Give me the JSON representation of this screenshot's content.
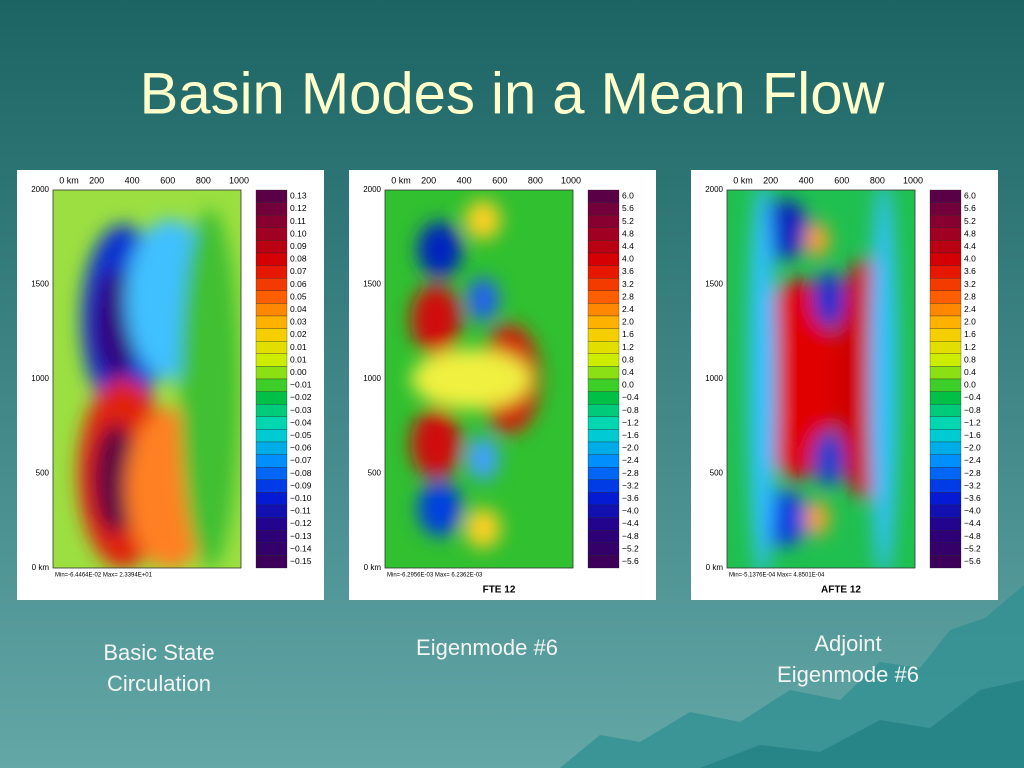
{
  "title": "Basin Modes in a Mean Flow",
  "panels": [
    {
      "x_ticks": [
        "0 km",
        "200",
        "400",
        "600",
        "800",
        "1000"
      ],
      "y_ticks": [
        "2000",
        "1500",
        "1000",
        "500",
        "0 km"
      ],
      "colorbar": [
        "0.13",
        "0.12",
        "0.11",
        "0.10",
        "0.09",
        "0.08",
        "0.07",
        "0.06",
        "0.05",
        "0.04",
        "0.03",
        "0.02",
        "0.01",
        "0.01",
        "0.00",
        "−0.01",
        "−0.02",
        "−0.03",
        "−0.04",
        "−0.05",
        "−0.06",
        "−0.07",
        "−0.08",
        "−0.09",
        "−0.10",
        "−0.11",
        "−0.12",
        "−0.13",
        "−0.14",
        "−0.15"
      ],
      "footer": "Min=-6.4464E-02   Max= 2.3394E+01",
      "caption": [
        "Basic State",
        "Circulation"
      ]
    },
    {
      "x_ticks": [
        "0 km",
        "200",
        "400",
        "600",
        "800",
        "1000"
      ],
      "y_ticks": [
        "2000",
        "1500",
        "1000",
        "500",
        "0 km"
      ],
      "colorbar": [
        "6.0",
        "5.6",
        "5.2",
        "4.8",
        "4.4",
        "4.0",
        "3.6",
        "3.2",
        "2.8",
        "2.4",
        "2.0",
        "1.6",
        "1.2",
        "0.8",
        "0.4",
        "0.0",
        "−0.4",
        "−0.8",
        "−1.2",
        "−1.6",
        "−2.0",
        "−2.4",
        "−2.8",
        "−3.2",
        "−3.6",
        "−4.0",
        "−4.4",
        "−4.8",
        "−5.2",
        "−5.6"
      ],
      "footer": "Min=-6.2956E-03   Max= 6.2362E-03",
      "subtitle": "FTE 12",
      "caption": [
        "Eigenmode #6"
      ]
    },
    {
      "x_ticks": [
        "0 km",
        "200",
        "400",
        "600",
        "800",
        "1000"
      ],
      "y_ticks": [
        "2000",
        "1500",
        "1000",
        "500",
        "0 km"
      ],
      "colorbar": [
        "6.0",
        "5.6",
        "5.2",
        "4.8",
        "4.4",
        "4.0",
        "3.6",
        "3.2",
        "2.8",
        "2.4",
        "2.0",
        "1.6",
        "1.2",
        "0.8",
        "0.4",
        "0.0",
        "−0.4",
        "−0.8",
        "−1.2",
        "−1.6",
        "−2.0",
        "−2.4",
        "−2.8",
        "−3.2",
        "−3.6",
        "−4.0",
        "−4.4",
        "−4.8",
        "−5.2",
        "−5.6"
      ],
      "footer": "Min=-5.1376E-04   Max= 4.8501E-04",
      "subtitle": "AFTE 12",
      "caption": [
        "Adjoint",
        "Eigenmode #6"
      ]
    }
  ]
}
